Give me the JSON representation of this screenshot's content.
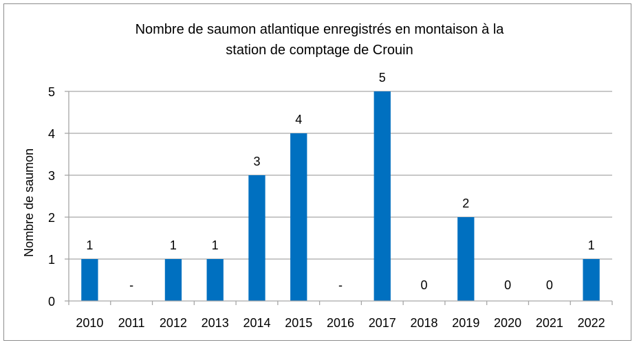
{
  "chart_data": {
    "type": "bar",
    "title_lines": [
      "Nombre de saumon atlantique enregistrés en montaison à la",
      "station de comptage de Crouin"
    ],
    "xlabel": "",
    "ylabel": "Nombre de saumon",
    "ylim": [
      0,
      5
    ],
    "yticks": [
      0,
      1,
      2,
      3,
      4,
      5
    ],
    "grid": true,
    "legend": "none",
    "categories": [
      "2010",
      "2011",
      "2012",
      "2013",
      "2014",
      "2015",
      "2016",
      "2017",
      "2018",
      "2019",
      "2020",
      "2021",
      "2022"
    ],
    "values": [
      1,
      null,
      1,
      1,
      3,
      4,
      null,
      5,
      0,
      2,
      0,
      0,
      1
    ],
    "data_labels": [
      "1",
      "-",
      "1",
      "1",
      "3",
      "4",
      "-",
      "5",
      "0",
      "2",
      "0",
      "0",
      "1"
    ],
    "bar_color": "#0070C0",
    "grid_color": "#a6a6a6"
  }
}
